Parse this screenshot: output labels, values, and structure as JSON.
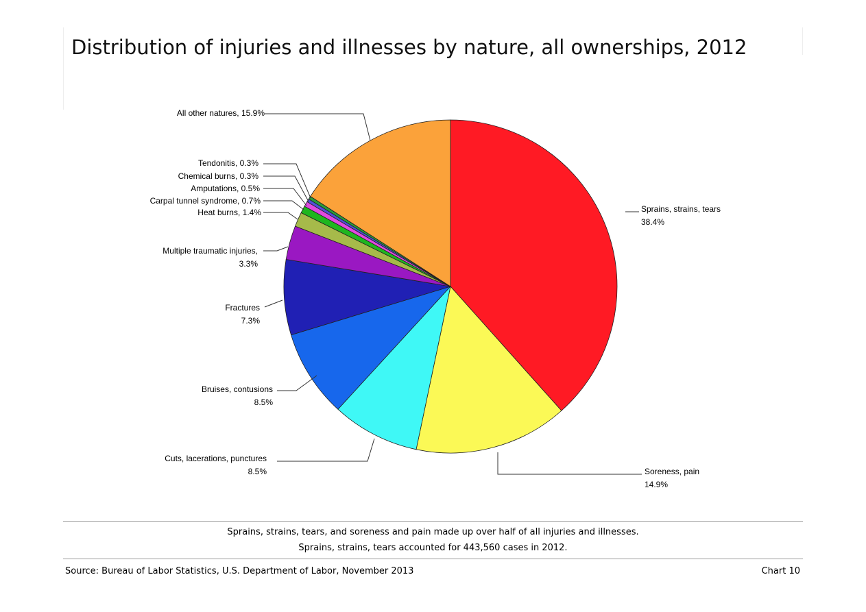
{
  "header": {
    "title": "Distribution of injuries and illnesses by nature, all ownerships, 2012"
  },
  "chart_data": {
    "type": "pie",
    "title": "Distribution of injuries and illnesses by nature, all ownerships, 2012",
    "slices": [
      {
        "label": "Sprains, strains, tears",
        "value": 38.4,
        "label_lines": [
          "Sprains, strains, tears",
          "38.4%"
        ],
        "color": "#ff1a24"
      },
      {
        "label": "Soreness, pain",
        "value": 14.9,
        "label_lines": [
          "Soreness, pain",
          "14.9%"
        ],
        "color": "#fbf956"
      },
      {
        "label": "Cuts, lacerations, punctures",
        "value": 8.5,
        "label_lines": [
          "Cuts, lacerations, punctures",
          "8.5%"
        ],
        "color": "#3ff8f6"
      },
      {
        "label": "Bruises, contusions",
        "value": 8.5,
        "label_lines": [
          "Bruises, contusions",
          "8.5%"
        ],
        "color": "#1767ec"
      },
      {
        "label": "Fractures",
        "value": 7.3,
        "label_lines": [
          "Fractures",
          "7.3%"
        ],
        "color": "#2020b4"
      },
      {
        "label": "Multiple traumatic injuries",
        "value": 3.3,
        "label_lines": [
          "Multiple traumatic injuries,",
          "3.3%"
        ],
        "color": "#9a18c2"
      },
      {
        "label": "Heat burns",
        "value": 1.4,
        "label_lines": [
          "Heat burns, 1.4%"
        ],
        "color": "#a6ba4a"
      },
      {
        "label": "Carpal tunnel syndrome",
        "value": 0.7,
        "label_lines": [
          "Carpal tunnel syndrome, 0.7%"
        ],
        "color": "#1fb61f"
      },
      {
        "label": "Amputations",
        "value": 0.5,
        "label_lines": [
          "Amputations, 0.5%"
        ],
        "color": "#e04ae0"
      },
      {
        "label": "Chemical burns",
        "value": 0.3,
        "label_lines": [
          "Chemical burns, 0.3%"
        ],
        "color": "#5050d8"
      },
      {
        "label": "Tendonitis",
        "value": 0.3,
        "label_lines": [
          "Tendonitis, 0.3%"
        ],
        "color": "#2a9a3a"
      },
      {
        "label": "All other natures",
        "value": 15.9,
        "label_lines": [
          "All other natures, 15.9%"
        ],
        "color": "#fba23a"
      }
    ]
  },
  "footer": {
    "note_line1": "Sprains, strains, tears, and soreness and pain made up over half of all injuries and illnesses.",
    "note_line2": "Sprains, strains, tears accounted for 443,560 cases in 2012.",
    "source": "Source: Bureau of Labor Statistics, U.S. Department of Labor, November 2013",
    "chart_number": "Chart 10"
  }
}
